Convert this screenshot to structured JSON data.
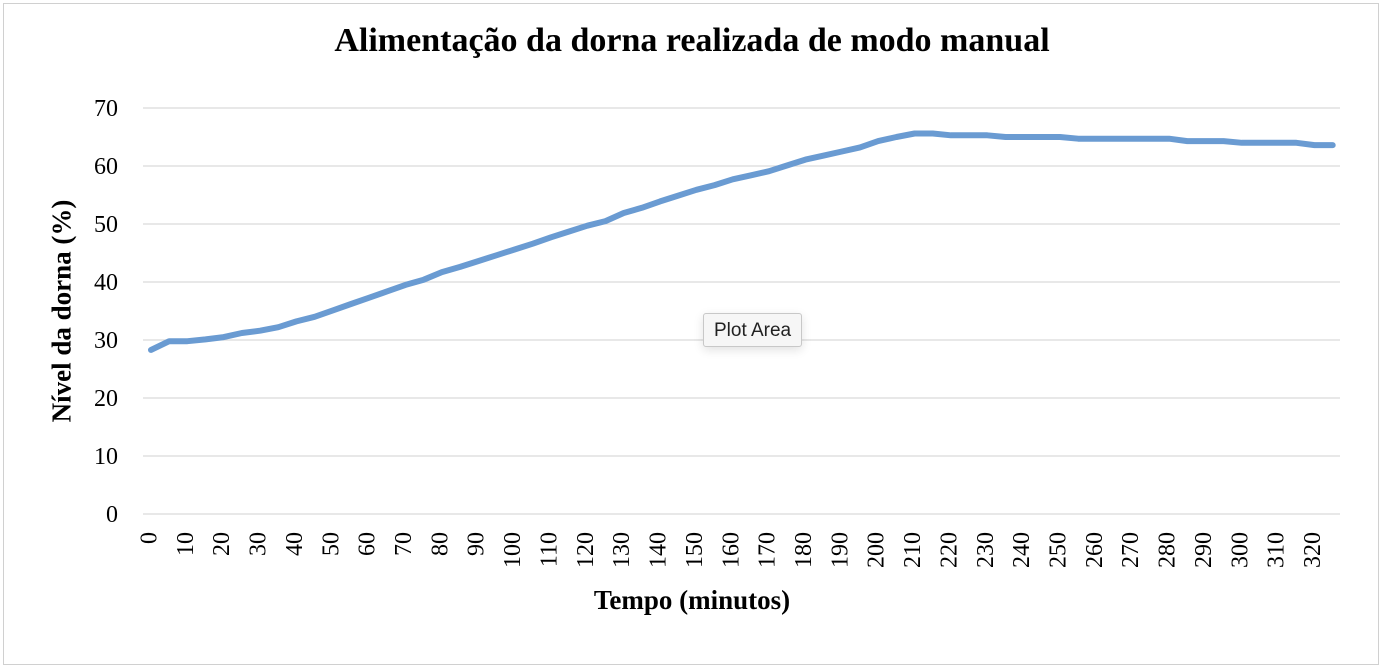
{
  "chart_data": {
    "type": "line",
    "title": "Alimentação da dorna realizada de modo manual",
    "xlabel": "Tempo (minutos)",
    "ylabel": "Nível da dorna (%)",
    "ylim": [
      0,
      70
    ],
    "yticks": [
      0,
      10,
      20,
      30,
      40,
      50,
      60,
      70
    ],
    "xticks": [
      0,
      10,
      20,
      30,
      40,
      50,
      60,
      70,
      80,
      90,
      100,
      110,
      120,
      130,
      140,
      150,
      160,
      170,
      180,
      190,
      200,
      210,
      220,
      230,
      240,
      250,
      260,
      270,
      280,
      290,
      300,
      310,
      320
    ],
    "grid": true,
    "color": "#6a9bd2",
    "series": [
      {
        "x": [
          0,
          5,
          10,
          15,
          20,
          25,
          30,
          35,
          40,
          45,
          50,
          55,
          60,
          65,
          70,
          75,
          80,
          85,
          90,
          95,
          100,
          105,
          110,
          115,
          120,
          125,
          130,
          135,
          140,
          145,
          150,
          155,
          160,
          165,
          170,
          175,
          180,
          185,
          190,
          195,
          200,
          205,
          210,
          215,
          220,
          225,
          230,
          235,
          240,
          245,
          250,
          255,
          260,
          265,
          270,
          275,
          280,
          285,
          290,
          295,
          300,
          305,
          310,
          315,
          320,
          325
        ],
        "values": [
          28.3,
          29.8,
          29.8,
          30.1,
          30.5,
          31.2,
          31.6,
          32.2,
          33.2,
          34.0,
          35.1,
          36.2,
          37.3,
          38.4,
          39.5,
          40.4,
          41.7,
          42.6,
          43.6,
          44.6,
          45.6,
          46.6,
          47.7,
          48.7,
          49.7,
          50.5,
          51.9,
          52.8,
          53.9,
          54.9,
          55.9,
          56.7,
          57.7,
          58.4,
          59.1,
          60.1,
          61.1,
          61.8,
          62.5,
          63.2,
          64.3,
          65.0,
          65.6,
          65.6,
          65.3,
          65.3,
          65.3,
          65.0,
          65.0,
          65.0,
          65.0,
          64.7,
          64.7,
          64.7,
          64.7,
          64.7,
          64.7,
          64.3,
          64.3,
          64.3,
          64.0,
          64.0,
          64.0,
          64.0,
          63.6,
          63.6
        ]
      }
    ]
  },
  "tooltip": {
    "label": "Plot Area"
  }
}
